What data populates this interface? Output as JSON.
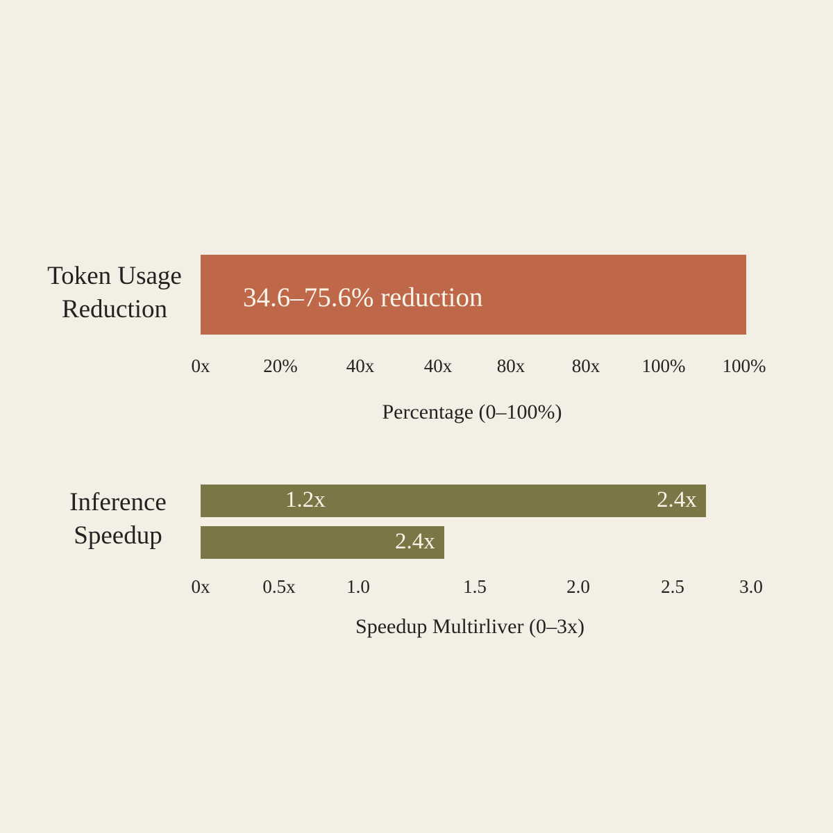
{
  "panels": [
    {
      "label": "Token Usage Reduction",
      "bars": [
        {
          "text": "34.6–75.6% reduction"
        }
      ],
      "ticks": [
        "0x",
        "20%",
        "40x",
        "40x",
        "80x",
        "80x",
        "100%",
        "100%"
      ],
      "axis_title": "Percentage (0–100%)"
    },
    {
      "label": "Inference Speedup",
      "bars": [
        {
          "texts": [
            "1.2x",
            "2.4x"
          ]
        },
        {
          "texts": [
            "2.4x"
          ]
        }
      ],
      "ticks": [
        "0x",
        "0.5x",
        "1.0",
        "1.5",
        "2.0",
        "2.5",
        "3.0"
      ],
      "axis_title": "Speedup Multirliver (0–3x)"
    }
  ]
}
